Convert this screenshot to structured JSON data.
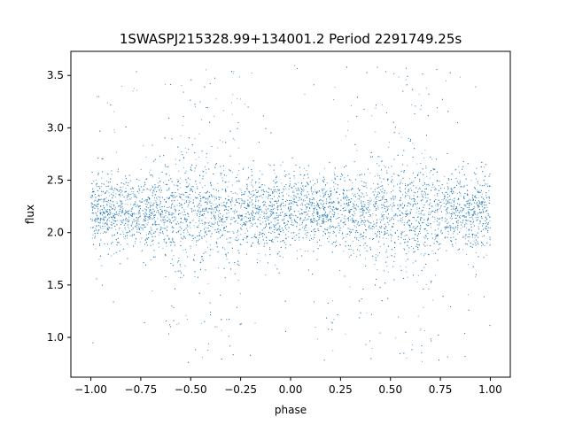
{
  "chart_data": {
    "type": "scatter",
    "title": "1SWASPJ215328.99+134001.2 Period 2291749.25s",
    "xlabel": "phase",
    "ylabel": "flux",
    "xlim": [
      -1.1,
      1.1
    ],
    "ylim": [
      0.62,
      3.73
    ],
    "xticks": [
      {
        "value": -1.0,
        "label": "−1.00"
      },
      {
        "value": -0.75,
        "label": "−0.75"
      },
      {
        "value": -0.5,
        "label": "−0.50"
      },
      {
        "value": -0.25,
        "label": "−0.25"
      },
      {
        "value": 0.0,
        "label": "0.00"
      },
      {
        "value": 0.25,
        "label": "0.25"
      },
      {
        "value": 0.5,
        "label": "0.50"
      },
      {
        "value": 0.75,
        "label": "0.75"
      },
      {
        "value": 1.0,
        "label": "1.00"
      }
    ],
    "yticks": [
      {
        "value": 1.0,
        "label": "1.0"
      },
      {
        "value": 1.5,
        "label": "1.5"
      },
      {
        "value": 2.0,
        "label": "2.0"
      },
      {
        "value": 2.5,
        "label": "2.5"
      },
      {
        "value": 3.0,
        "label": "3.0"
      },
      {
        "value": 3.5,
        "label": "3.5"
      }
    ],
    "grid": false,
    "legend": "none",
    "point_color": "#1f77b4",
    "series": [
      {
        "phase_range": [
          -1.0,
          1.0
        ],
        "baseline_flux": 2.2,
        "core_flux_range": [
          1.85,
          2.6
        ],
        "outlier_flux_range": [
          0.75,
          3.6
        ],
        "high_scatter_phases": [
          -0.52,
          -0.33,
          0.45,
          0.55,
          0.67
        ]
      }
    ]
  }
}
